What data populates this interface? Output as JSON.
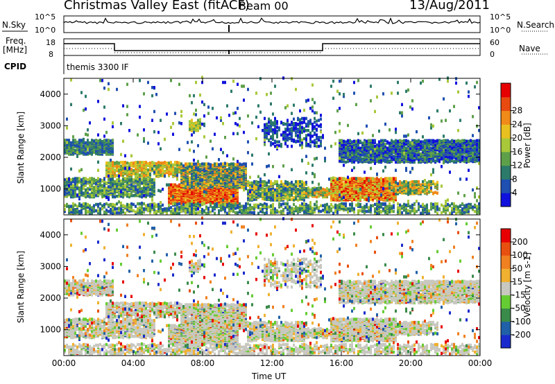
{
  "header": {
    "title": "Christmas Valley East (fitACF)",
    "beam": "Beam 00",
    "date": "13/Aug/2011"
  },
  "sky_panel": {
    "left_label": "N.Sky",
    "right_label": "N.Search",
    "tick_top": "10^5",
    "tick_bottom": "10^0"
  },
  "freq_panel": {
    "left_label_1": "Freq.",
    "left_label_2": "[MHz]",
    "right_label": "Nave",
    "left_tick_top": "18",
    "left_tick_bottom": "8",
    "right_tick_top": "60",
    "right_tick_bottom": "0",
    "cpid_label": "CPID",
    "cpid_text": "themis 3300 IF"
  },
  "chart_data": [
    {
      "type": "heatmap",
      "name": "power-panel",
      "ylabel": "Slant Range [km]",
      "y_ticks": [
        1000,
        2000,
        3000,
        4000
      ],
      "ylim": [
        180,
        4500
      ],
      "colorbar": {
        "label": "Power [dB]",
        "ticks": [
          "4",
          "8",
          "12",
          "16",
          "20",
          "24",
          "28"
        ],
        "colors": [
          "#1111dd",
          "#1f4fb0",
          "#2c7a6a",
          "#5ea04a",
          "#a8c83a",
          "#e8c020",
          "#f08a18",
          "#e84a10",
          "#e60000"
        ]
      }
    },
    {
      "type": "heatmap",
      "name": "velocity-panel",
      "ylabel": "Slant Range [km]",
      "y_ticks": [
        1000,
        2000,
        3000,
        4000
      ],
      "ylim": [
        180,
        4500
      ],
      "xlabel": "Time UT",
      "x_ticks": [
        "00:00",
        "04:00",
        "08:00",
        "12:00",
        "16:00",
        "20:00",
        "00:00"
      ],
      "colorbar": {
        "label": "Velocity [m s-1]",
        "ticks": [
          "200",
          "100",
          "50",
          "15",
          "-15",
          "-50",
          "-100",
          "-200"
        ],
        "colors": [
          "#1a2acc",
          "#2060a8",
          "#3a8a4a",
          "#66cc33",
          "#c8c8c0",
          "#f0b030",
          "#f08020",
          "#e85010",
          "#e80000"
        ]
      }
    }
  ]
}
